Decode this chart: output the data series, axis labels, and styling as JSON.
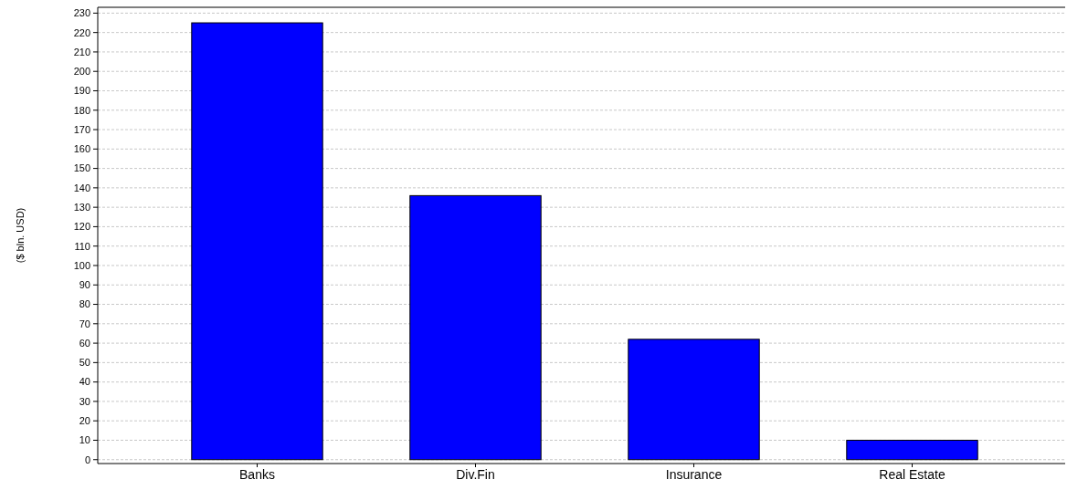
{
  "chart_data": {
    "type": "bar",
    "ylabel": "($ bln. USD)",
    "categories": [
      "Banks",
      "Div.Fin",
      "Insurance",
      "Real Estate"
    ],
    "values": [
      225,
      136,
      62,
      10
    ],
    "color": "#0000ff",
    "ylim": [
      -2,
      233
    ],
    "yticks": [
      0,
      10,
      20,
      30,
      40,
      50,
      60,
      70,
      80,
      90,
      100,
      110,
      120,
      130,
      140,
      150,
      160,
      170,
      180,
      190,
      200,
      210,
      220,
      230
    ],
    "grid": "y"
  }
}
